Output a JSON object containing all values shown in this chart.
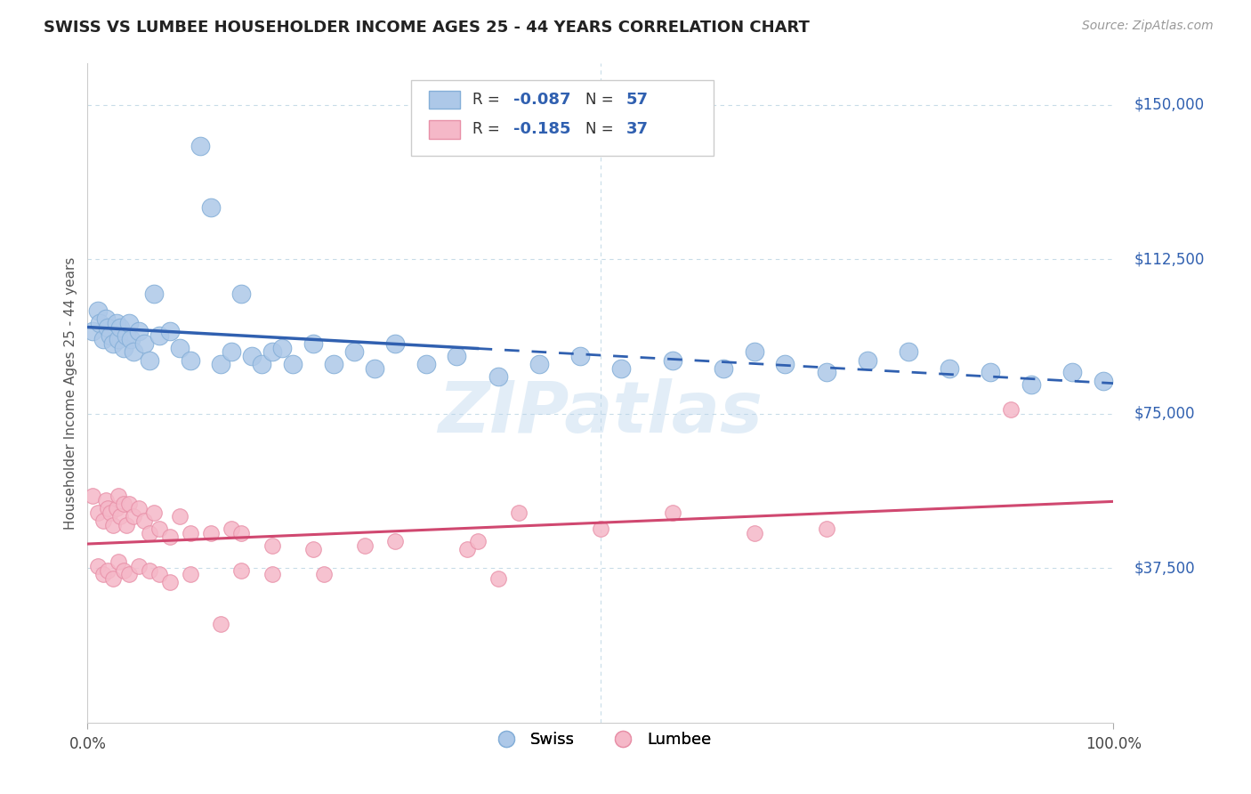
{
  "title": "SWISS VS LUMBEE HOUSEHOLDER INCOME AGES 25 - 44 YEARS CORRELATION CHART",
  "source": "Source: ZipAtlas.com",
  "ylabel": "Householder Income Ages 25 - 44 years",
  "xlim": [
    0,
    100
  ],
  "ylim": [
    0,
    160000
  ],
  "yticks": [
    0,
    37500,
    75000,
    112500,
    150000
  ],
  "ytick_labels": [
    "",
    "$37,500",
    "$75,000",
    "$112,500",
    "$150,000"
  ],
  "xtick_labels": [
    "0.0%",
    "100.0%"
  ],
  "swiss_color": "#adc8e8",
  "swiss_edge_color": "#85afd8",
  "lumbee_color": "#f5b8c8",
  "lumbee_edge_color": "#e890a8",
  "swiss_line_color": "#3060b0",
  "lumbee_line_color": "#d04870",
  "swiss_R": -0.087,
  "swiss_N": 57,
  "lumbee_R": -0.185,
  "lumbee_N": 37,
  "watermark": "ZIPatlas",
  "background_color": "#ffffff",
  "grid_color": "#c8dce8",
  "swiss_x": [
    0.5,
    1.0,
    1.2,
    1.5,
    1.8,
    2.0,
    2.2,
    2.5,
    2.8,
    3.0,
    3.2,
    3.5,
    3.8,
    4.0,
    4.2,
    4.5,
    5.0,
    5.5,
    6.0,
    6.5,
    7.0,
    8.0,
    9.0,
    10.0,
    11.0,
    12.0,
    13.0,
    14.0,
    15.0,
    16.0,
    17.0,
    18.0,
    19.0,
    20.0,
    22.0,
    24.0,
    26.0,
    28.0,
    30.0,
    33.0,
    36.0,
    40.0,
    44.0,
    48.0,
    52.0,
    57.0,
    62.0,
    65.0,
    68.0,
    72.0,
    76.0,
    80.0,
    84.0,
    88.0,
    92.0,
    96.0,
    99.0
  ],
  "swiss_y": [
    95000,
    100000,
    97000,
    93000,
    98000,
    96000,
    94000,
    92000,
    97000,
    93000,
    96000,
    91000,
    94000,
    97000,
    93000,
    90000,
    95000,
    92000,
    88000,
    104000,
    94000,
    95000,
    91000,
    88000,
    140000,
    125000,
    87000,
    90000,
    104000,
    89000,
    87000,
    90000,
    91000,
    87000,
    92000,
    87000,
    90000,
    86000,
    92000,
    87000,
    89000,
    84000,
    87000,
    89000,
    86000,
    88000,
    86000,
    90000,
    87000,
    85000,
    88000,
    90000,
    86000,
    85000,
    82000,
    85000,
    83000
  ],
  "lumbee_x": [
    0.5,
    1.0,
    1.5,
    1.8,
    2.0,
    2.2,
    2.5,
    2.8,
    3.0,
    3.2,
    3.5,
    3.8,
    4.0,
    4.5,
    5.0,
    5.5,
    6.0,
    6.5,
    7.0,
    8.0,
    9.0,
    10.0,
    12.0,
    14.0,
    15.0,
    18.0,
    22.0,
    27.0,
    30.0,
    37.0,
    38.0,
    42.0,
    50.0,
    57.0,
    65.0,
    72.0,
    90.0
  ],
  "lumbee_y": [
    55000,
    51000,
    49000,
    54000,
    52000,
    51000,
    48000,
    52000,
    55000,
    50000,
    53000,
    48000,
    53000,
    50000,
    52000,
    49000,
    46000,
    51000,
    47000,
    45000,
    50000,
    46000,
    46000,
    47000,
    46000,
    43000,
    42000,
    43000,
    44000,
    42000,
    44000,
    51000,
    47000,
    51000,
    46000,
    47000,
    76000
  ],
  "lumbee_low_x": [
    1.0,
    1.5,
    2.0,
    2.5,
    3.0,
    3.5,
    4.0,
    5.0,
    6.0,
    7.0,
    8.0,
    10.0,
    13.0,
    15.0,
    18.0,
    23.0,
    40.0
  ],
  "lumbee_low_y": [
    38000,
    36000,
    37000,
    35000,
    39000,
    37000,
    36000,
    38000,
    37000,
    36000,
    34000,
    36000,
    24000,
    37000,
    36000,
    36000,
    35000
  ]
}
